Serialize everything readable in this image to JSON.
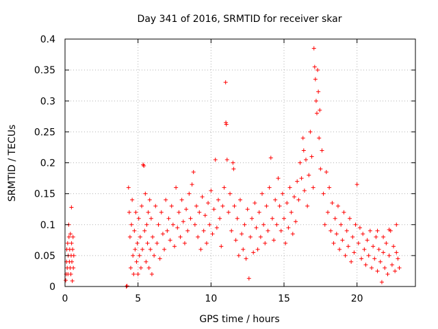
{
  "chart_data": {
    "type": "scatter",
    "title": "Day 341 of 2016, SRMTID for receiver skar",
    "xlabel": "GPS time / hours",
    "ylabel": "SRMTID / TECUs",
    "xlim": [
      0,
      24
    ],
    "ylim": [
      0,
      0.4
    ],
    "xticks": [
      0,
      5,
      10,
      15,
      20
    ],
    "xtick_labels": [
      "0",
      "5",
      "10",
      "15",
      "20"
    ],
    "yticks": [
      0,
      0.05,
      0.1,
      0.15,
      0.2,
      0.25,
      0.3,
      0.35,
      0.4
    ],
    "ytick_labels": [
      "0",
      "0.05",
      "0.1",
      "0.15",
      "0.2",
      "0.25",
      "0.3",
      "0.35",
      "0.4"
    ],
    "grid": true,
    "marker": "plus",
    "color": "#ff0000",
    "series": [
      {
        "name": "SRMTID",
        "points": [
          [
            0.05,
            0.01
          ],
          [
            0.08,
            0.02
          ],
          [
            0.1,
            0.04
          ],
          [
            0.12,
            0.06
          ],
          [
            0.15,
            0.03
          ],
          [
            0.18,
            0.07
          ],
          [
            0.2,
            0.02
          ],
          [
            0.22,
            0.05
          ],
          [
            0.25,
            0.1
          ],
          [
            0.27,
            0.08
          ],
          [
            0.3,
            0.04
          ],
          [
            0.32,
            0.06
          ],
          [
            0.35,
            0.03
          ],
          [
            0.37,
            0.085
          ],
          [
            0.4,
            0.02
          ],
          [
            0.42,
            0.05
          ],
          [
            0.44,
            0.128
          ],
          [
            0.45,
            0.07
          ],
          [
            0.47,
            0.04
          ],
          [
            0.5,
            0.009
          ],
          [
            0.52,
            0.06
          ],
          [
            0.55,
            0.08
          ],
          [
            0.57,
            0.03
          ],
          [
            0.6,
            0.05
          ],
          [
            4.2,
            0.0
          ],
          [
            4.25,
            0.001
          ],
          [
            4.35,
            0.16
          ],
          [
            4.4,
            0.12
          ],
          [
            4.45,
            0.08
          ],
          [
            4.5,
            0.03
          ],
          [
            4.55,
            0.1
          ],
          [
            4.6,
            0.14
          ],
          [
            4.65,
            0.05
          ],
          [
            4.7,
            0.02
          ],
          [
            4.75,
            0.09
          ],
          [
            4.8,
            0.06
          ],
          [
            4.85,
            0.12
          ],
          [
            4.9,
            0.04
          ],
          [
            4.95,
            0.07
          ],
          [
            5.0,
            0.02
          ],
          [
            5.05,
            0.11
          ],
          [
            5.1,
            0.05
          ],
          [
            5.15,
            0.08
          ],
          [
            5.2,
            0.03
          ],
          [
            5.25,
            0.13
          ],
          [
            5.3,
            0.06
          ],
          [
            5.35,
            0.197
          ],
          [
            5.4,
            0.195
          ],
          [
            5.45,
            0.09
          ],
          [
            5.5,
            0.15
          ],
          [
            5.55,
            0.04
          ],
          [
            5.6,
            0.1
          ],
          [
            5.65,
            0.07
          ],
          [
            5.7,
            0.12
          ],
          [
            5.75,
            0.03
          ],
          [
            5.8,
            0.14
          ],
          [
            5.85,
            0.06
          ],
          [
            5.9,
            0.11
          ],
          [
            5.95,
            0.02
          ],
          [
            6.0,
            0.08
          ],
          [
            6.1,
            0.05
          ],
          [
            6.2,
            0.13
          ],
          [
            6.3,
            0.07
          ],
          [
            6.4,
            0.1
          ],
          [
            6.5,
            0.045
          ],
          [
            6.6,
            0.12
          ],
          [
            6.7,
            0.085
          ],
          [
            6.8,
            0.06
          ],
          [
            6.9,
            0.14
          ],
          [
            7.0,
            0.09
          ],
          [
            7.1,
            0.11
          ],
          [
            7.2,
            0.075
          ],
          [
            7.3,
            0.13
          ],
          [
            7.4,
            0.1
          ],
          [
            7.5,
            0.065
          ],
          [
            7.6,
            0.16
          ],
          [
            7.7,
            0.095
          ],
          [
            7.8,
            0.12
          ],
          [
            7.9,
            0.08
          ],
          [
            8.0,
            0.14
          ],
          [
            8.1,
            0.105
          ],
          [
            8.2,
            0.07
          ],
          [
            8.3,
            0.125
          ],
          [
            8.4,
            0.09
          ],
          [
            8.5,
            0.15
          ],
          [
            8.6,
            0.11
          ],
          [
            8.7,
            0.165
          ],
          [
            8.8,
            0.185
          ],
          [
            8.9,
            0.1
          ],
          [
            9.0,
            0.13
          ],
          [
            9.1,
            0.08
          ],
          [
            9.2,
            0.12
          ],
          [
            9.3,
            0.06
          ],
          [
            9.4,
            0.145
          ],
          [
            9.5,
            0.09
          ],
          [
            9.6,
            0.115
          ],
          [
            9.7,
            0.07
          ],
          [
            9.8,
            0.135
          ],
          [
            9.9,
            0.1
          ],
          [
            10.0,
            0.155
          ],
          [
            10.1,
            0.085
          ],
          [
            10.2,
            0.125
          ],
          [
            10.3,
            0.205
          ],
          [
            10.4,
            0.095
          ],
          [
            10.5,
            0.14
          ],
          [
            10.6,
            0.11
          ],
          [
            10.7,
            0.065
          ],
          [
            10.8,
            0.13
          ],
          [
            10.9,
            0.16
          ],
          [
            11.0,
            0.33
          ],
          [
            11.02,
            0.265
          ],
          [
            11.05,
            0.262
          ],
          [
            11.1,
            0.205
          ],
          [
            11.2,
            0.12
          ],
          [
            11.3,
            0.15
          ],
          [
            11.4,
            0.09
          ],
          [
            11.5,
            0.2
          ],
          [
            11.55,
            0.19
          ],
          [
            11.6,
            0.13
          ],
          [
            11.7,
            0.075
          ],
          [
            11.8,
            0.11
          ],
          [
            11.9,
            0.05
          ],
          [
            12.0,
            0.14
          ],
          [
            12.1,
            0.085
          ],
          [
            12.2,
            0.06
          ],
          [
            12.3,
            0.1
          ],
          [
            12.4,
            0.045
          ],
          [
            12.5,
            0.125
          ],
          [
            12.6,
            0.013
          ],
          [
            12.7,
            0.08
          ],
          [
            12.8,
            0.11
          ],
          [
            12.9,
            0.055
          ],
          [
            13.0,
            0.135
          ],
          [
            13.1,
            0.095
          ],
          [
            13.2,
            0.06
          ],
          [
            13.3,
            0.12
          ],
          [
            13.4,
            0.08
          ],
          [
            13.5,
            0.15
          ],
          [
            13.6,
            0.1
          ],
          [
            13.7,
            0.07
          ],
          [
            13.8,
            0.13
          ],
          [
            13.9,
            0.09
          ],
          [
            14.0,
            0.16
          ],
          [
            14.1,
            0.208
          ],
          [
            14.2,
            0.11
          ],
          [
            14.3,
            0.075
          ],
          [
            14.4,
            0.14
          ],
          [
            14.5,
            0.1
          ],
          [
            14.6,
            0.175
          ],
          [
            14.7,
            0.13
          ],
          [
            14.8,
            0.09
          ],
          [
            14.9,
            0.15
          ],
          [
            15.0,
            0.11
          ],
          [
            15.1,
            0.07
          ],
          [
            15.2,
            0.135
          ],
          [
            15.3,
            0.095
          ],
          [
            15.4,
            0.16
          ],
          [
            15.5,
            0.12
          ],
          [
            15.6,
            0.085
          ],
          [
            15.7,
            0.145
          ],
          [
            15.8,
            0.105
          ],
          [
            15.9,
            0.17
          ],
          [
            16.0,
            0.14
          ],
          [
            16.1,
            0.2
          ],
          [
            16.2,
            0.175
          ],
          [
            16.3,
            0.24
          ],
          [
            16.35,
            0.22
          ],
          [
            16.4,
            0.155
          ],
          [
            16.5,
            0.205
          ],
          [
            16.6,
            0.13
          ],
          [
            16.7,
            0.18
          ],
          [
            16.8,
            0.25
          ],
          [
            16.9,
            0.21
          ],
          [
            17.0,
            0.16
          ],
          [
            17.05,
            0.385
          ],
          [
            17.1,
            0.355
          ],
          [
            17.15,
            0.335
          ],
          [
            17.2,
            0.3
          ],
          [
            17.25,
            0.28
          ],
          [
            17.3,
            0.35
          ],
          [
            17.35,
            0.315
          ],
          [
            17.4,
            0.24
          ],
          [
            17.45,
            0.285
          ],
          [
            17.5,
            0.19
          ],
          [
            17.6,
            0.22
          ],
          [
            17.7,
            0.15
          ],
          [
            17.8,
            0.1
          ],
          [
            17.9,
            0.185
          ],
          [
            18.0,
            0.12
          ],
          [
            18.1,
            0.16
          ],
          [
            18.2,
            0.09
          ],
          [
            18.3,
            0.135
          ],
          [
            18.4,
            0.07
          ],
          [
            18.5,
            0.11
          ],
          [
            18.6,
            0.085
          ],
          [
            18.7,
            0.13
          ],
          [
            18.8,
            0.06
          ],
          [
            18.9,
            0.1
          ],
          [
            19.0,
            0.075
          ],
          [
            19.1,
            0.12
          ],
          [
            19.2,
            0.05
          ],
          [
            19.3,
            0.09
          ],
          [
            19.4,
            0.065
          ],
          [
            19.5,
            0.11
          ],
          [
            19.6,
            0.04
          ],
          [
            19.7,
            0.08
          ],
          [
            19.8,
            0.055
          ],
          [
            19.9,
            0.1
          ],
          [
            20.0,
            0.165
          ],
          [
            20.1,
            0.07
          ],
          [
            20.2,
            0.095
          ],
          [
            20.3,
            0.045
          ],
          [
            20.4,
            0.085
          ],
          [
            20.5,
            0.06
          ],
          [
            20.6,
            0.035
          ],
          [
            20.7,
            0.075
          ],
          [
            20.8,
            0.05
          ],
          [
            20.9,
            0.09
          ],
          [
            21.0,
            0.03
          ],
          [
            21.1,
            0.065
          ],
          [
            21.2,
            0.045
          ],
          [
            21.3,
            0.08
          ],
          [
            21.4,
            0.025
          ],
          [
            21.5,
            0.06
          ],
          [
            21.6,
            0.04
          ],
          [
            21.7,
            0.007
          ],
          [
            21.8,
            0.055
          ],
          [
            21.9,
            0.03
          ],
          [
            22.0,
            0.07
          ],
          [
            22.1,
            0.02
          ],
          [
            22.2,
            0.05
          ],
          [
            22.3,
            0.09
          ],
          [
            22.4,
            0.035
          ],
          [
            22.5,
            0.065
          ],
          [
            22.6,
            0.025
          ],
          [
            22.7,
            0.055
          ],
          [
            22.8,
            0.045
          ],
          [
            22.9,
            0.03
          ],
          [
            22.2,
            0.092
          ],
          [
            22.7,
            0.1
          ],
          [
            21.4,
            0.09
          ],
          [
            21.8,
            0.08
          ]
        ]
      }
    ]
  }
}
